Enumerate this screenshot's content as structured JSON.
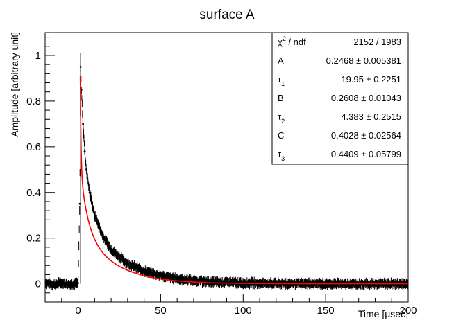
{
  "chart_data": {
    "type": "scatter",
    "title": "surface A",
    "xlabel": "Time [μsec]",
    "ylabel": "Amplitude [arbitrary unit]",
    "xlim": [
      -20,
      200
    ],
    "ylim": [
      -0.08,
      1.1
    ],
    "x_ticks": [
      0,
      50,
      100,
      150,
      200
    ],
    "x_tick_labels": [
      "0",
      "50",
      "100",
      "150",
      "200"
    ],
    "y_ticks": [
      0,
      0.2,
      0.4,
      0.6,
      0.8,
      1
    ],
    "y_tick_labels": [
      "0",
      "0.2",
      "0.4",
      "0.6",
      "0.8",
      "1"
    ],
    "grid": false,
    "legend": "none",
    "series": [
      {
        "kind": "data-with-error-bars",
        "color": "#000000",
        "points": [
          {
            "x": -20,
            "y": 0.005
          },
          {
            "x": -15,
            "y": -0.003
          },
          {
            "x": -10,
            "y": 0.004
          },
          {
            "x": -5,
            "y": -0.002
          },
          {
            "x": 0,
            "y": 0.003
          },
          {
            "x": 1,
            "y": 0.35
          },
          {
            "x": 1.5,
            "y": 0.95
          },
          {
            "x": 2,
            "y": 0.85
          },
          {
            "x": 3,
            "y": 0.7
          },
          {
            "x": 4,
            "y": 0.58
          },
          {
            "x": 5,
            "y": 0.5
          },
          {
            "x": 7,
            "y": 0.4
          },
          {
            "x": 10,
            "y": 0.3
          },
          {
            "x": 15,
            "y": 0.21
          },
          {
            "x": 20,
            "y": 0.15
          },
          {
            "x": 30,
            "y": 0.088
          },
          {
            "x": 40,
            "y": 0.055
          },
          {
            "x": 50,
            "y": 0.035
          },
          {
            "x": 60,
            "y": 0.022
          },
          {
            "x": 70,
            "y": 0.014
          },
          {
            "x": 80,
            "y": 0.009
          },
          {
            "x": 100,
            "y": 0.004
          },
          {
            "x": 125,
            "y": 0.001
          },
          {
            "x": 150,
            "y": 0.0
          },
          {
            "x": 175,
            "y": 0.0
          },
          {
            "x": 200,
            "y": 0.0
          }
        ]
      },
      {
        "kind": "fit",
        "color": "#ff0000",
        "model": "A*exp(-t/tau1) + B*exp(-t/tau2) + C*exp(-t/tau3)",
        "start": 1.3
      }
    ],
    "stats": {
      "rows": [
        {
          "label": "χ",
          "sup": "2",
          "suffix": " / ndf",
          "value": "2152 / 1983"
        },
        {
          "label": "A",
          "value": "0.2468 ± 0.005381"
        },
        {
          "label": "τ",
          "sub": "1",
          "value": "19.95 ± 0.2251"
        },
        {
          "label": "B",
          "value": "0.2608 ± 0.01043"
        },
        {
          "label": "τ",
          "sub": "2",
          "value": "4.383 ± 0.2515"
        },
        {
          "label": "C",
          "value": "0.4028 ± 0.02564"
        },
        {
          "label": "τ",
          "sub": "3",
          "value": "0.4409 ± 0.05799"
        }
      ],
      "params": {
        "A": 0.2468,
        "tau1": 19.95,
        "B": 0.2608,
        "tau2": 4.383,
        "C": 0.4028,
        "tau3": 0.4409
      }
    }
  }
}
